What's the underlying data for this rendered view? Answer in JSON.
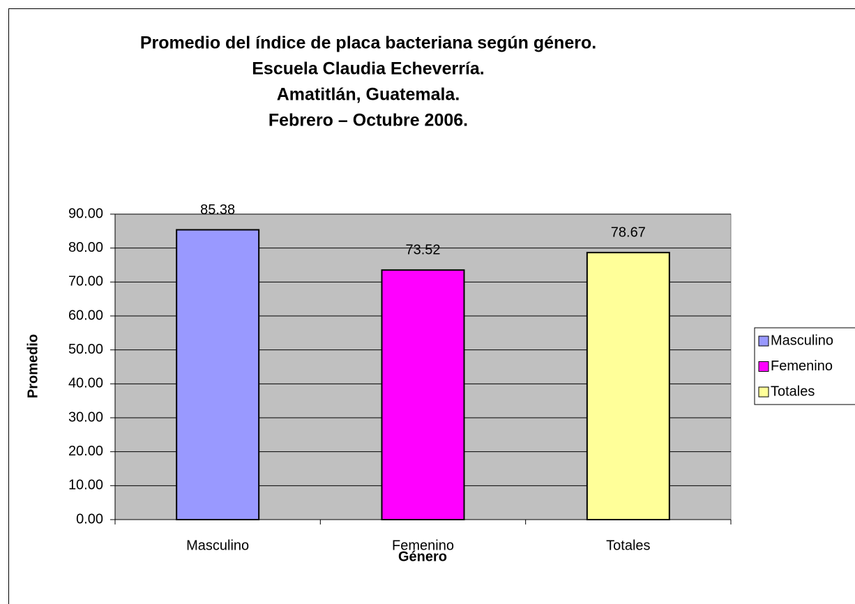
{
  "chart_data": {
    "type": "bar",
    "title": [
      "Promedio del índice de placa bacteriana según género.",
      "Escuela Claudia Echeverría.",
      "Amatitlán, Guatemala.",
      "Febrero – Octubre 2006."
    ],
    "x_label": "Género",
    "y_label": "Promedio",
    "categories": [
      "Masculino",
      "Femenino",
      "Totales"
    ],
    "values": [
      85.38,
      73.52,
      78.67
    ],
    "colors": [
      "#9999ff",
      "#ff00ff",
      "#ffff99"
    ],
    "ylim": [
      0,
      90
    ],
    "yticks": [
      {
        "value": 0,
        "label": "0.00"
      },
      {
        "value": 10,
        "label": "10.00"
      },
      {
        "value": 20,
        "label": "20.00"
      },
      {
        "value": 30,
        "label": "30.00"
      },
      {
        "value": 40,
        "label": "40.00"
      },
      {
        "value": 50,
        "label": "50.00"
      },
      {
        "value": 60,
        "label": "60.00"
      },
      {
        "value": 70,
        "label": "70.00"
      },
      {
        "value": 80,
        "label": "80.00"
      },
      {
        "value": 90,
        "label": "90.00"
      }
    ],
    "grid": true,
    "legend": "right",
    "plot_background": "#c0c0c0"
  }
}
